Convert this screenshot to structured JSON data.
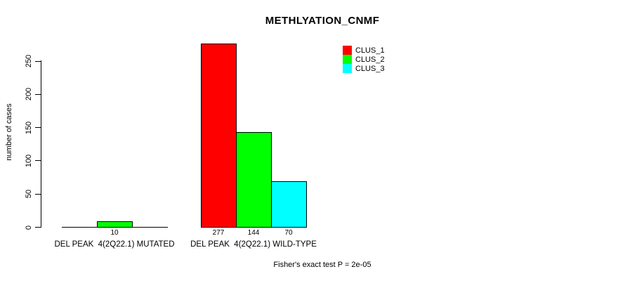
{
  "chart_data": {
    "type": "bar",
    "title": "METHLYATION_CNMF",
    "ylabel": "number of cases",
    "ylim": [
      0,
      250
    ],
    "yticks": [
      0,
      50,
      100,
      150,
      200,
      250
    ],
    "grid": false,
    "legend_position": "top-right-inside",
    "series": [
      {
        "name": "CLUS_1",
        "color": "#FF0000"
      },
      {
        "name": "CLUS_2",
        "color": "#00FF00"
      },
      {
        "name": "CLUS_3",
        "color": "#00FFFF"
      }
    ],
    "groups": [
      {
        "label": "DEL PEAK  4(2Q22.1) MUTATED",
        "values": [
          0,
          10,
          0
        ],
        "value_labels": [
          "",
          "10",
          ""
        ]
      },
      {
        "label": "DEL PEAK  4(2Q22.1) WILD-TYPE",
        "values": [
          277,
          144,
          70
        ],
        "value_labels": [
          "277",
          "144",
          "70"
        ]
      }
    ],
    "footnote": "Fisher's exact test P = 2e-05"
  }
}
